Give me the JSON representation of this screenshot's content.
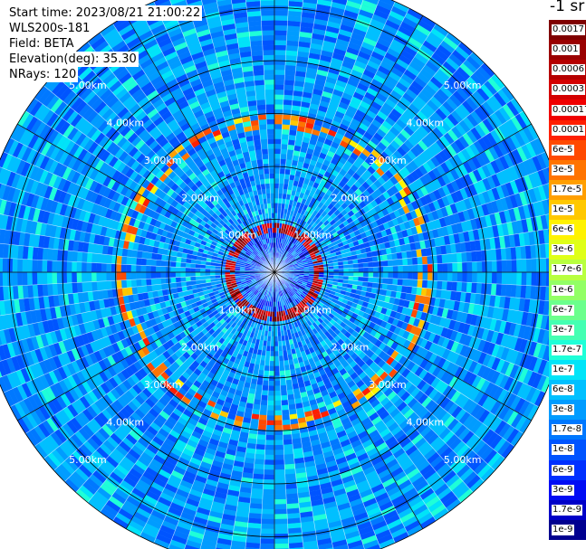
{
  "header": {
    "start_time": "Start time: 2023/08/21 21:00:22",
    "instrument": "WLS200s-181",
    "field": "Field: BETA",
    "elevation": "Elevation(deg): 35.30",
    "nrays": "NRays: 120"
  },
  "unit_label": "-1 sr",
  "chart_data": {
    "type": "heatmap",
    "projection": "polar (PPI scan)",
    "field": "BETA",
    "n_rays": 120,
    "elevation_deg": 35.3,
    "range_rings_km": [
      1.0,
      2.0,
      3.0,
      4.0,
      5.0
    ],
    "ring_labels": [
      "1.00km",
      "2.00km",
      "3.00km",
      "4.00km",
      "5.00km"
    ],
    "max_range_km": 5.6,
    "colorbar_ticks": [
      "0.0017",
      "0.001",
      "0.0006",
      "0.0003",
      "0.00017",
      "0.0001",
      "6e-5",
      "3e-5",
      "1.7e-5",
      "1e-5",
      "6e-6",
      "3e-6",
      "1.7e-6",
      "1e-6",
      "6e-7",
      "3e-7",
      "1.7e-7",
      "1e-7",
      "6e-8",
      "3e-8",
      "1.7e-8",
      "1e-8",
      "6e-9",
      "3e-9",
      "1.7e-9",
      "1e-9"
    ],
    "colorbar_colors": [
      "#7f0000",
      "#9a0000",
      "#b50000",
      "#d40000",
      "#f00000",
      "#ff1f00",
      "#ff4a00",
      "#ff7400",
      "#ff9f00",
      "#ffc800",
      "#fff200",
      "#dfff18",
      "#b8ff3f",
      "#92ff65",
      "#6bff8c",
      "#44ffb2",
      "#1effd8",
      "#00e4f8",
      "#00c0ff",
      "#009cff",
      "#0078ff",
      "#0054ff",
      "#0030ff",
      "#000cf4",
      "#0000c8",
      "#00008f"
    ],
    "feature_ring_1": {
      "range_km": [
        0.75,
        0.95
      ],
      "beta": "3e-4 to 1.7e-3"
    },
    "feature_ring_2": {
      "range_km": [
        2.7,
        3.0
      ],
      "beta": "3e-5 to 3e-4"
    },
    "grid": true
  }
}
